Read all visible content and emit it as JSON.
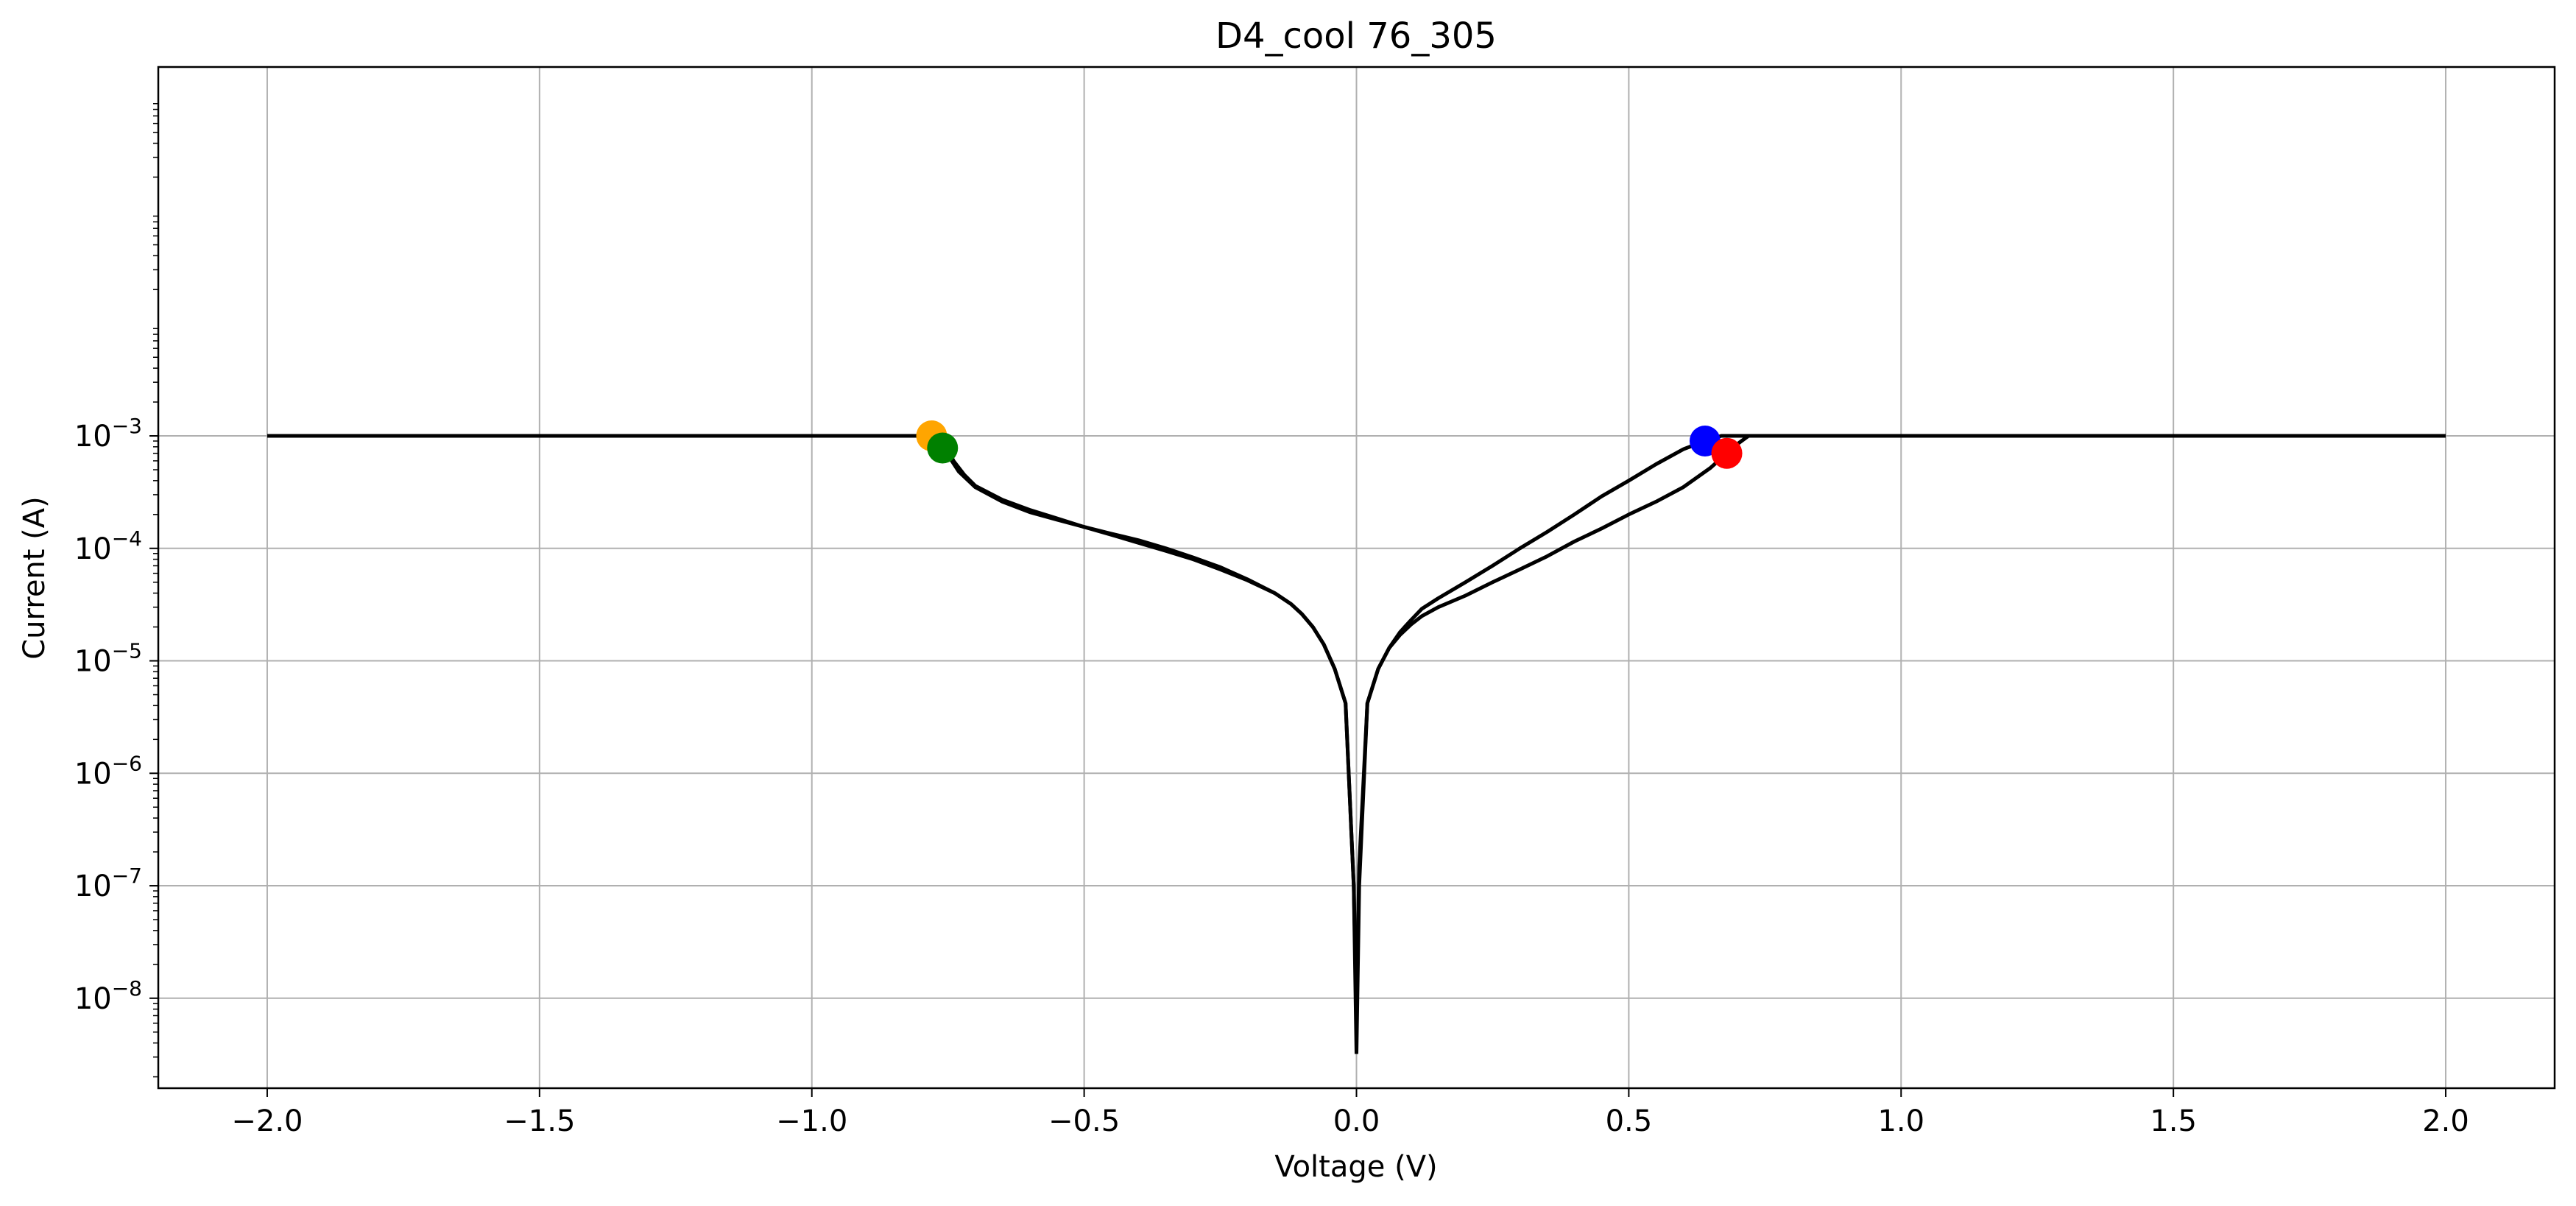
{
  "chart_data": {
    "type": "line",
    "title": "D4_cool 76_305",
    "xlabel": "Voltage (V)",
    "ylabel": "Current (A)",
    "x_scale": "linear",
    "y_scale": "log",
    "xlim": [
      -2.2,
      2.2
    ],
    "ylim_exponent": [
      -8.8,
      0.28
    ],
    "xticks": [
      -2.0,
      -1.5,
      -1.0,
      -0.5,
      0.0,
      0.5,
      1.0,
      1.5,
      2.0
    ],
    "xtick_labels": [
      "−2.0",
      "−1.5",
      "−1.0",
      "−0.5",
      "0.0",
      "0.5",
      "1.0",
      "1.5",
      "2.0"
    ],
    "yticks": [
      1e-08,
      1e-07,
      1e-06,
      1e-05,
      0.0001,
      0.001
    ],
    "ytick_labels": [
      {
        "base": "10",
        "exp": "−8"
      },
      {
        "base": "10",
        "exp": "−7"
      },
      {
        "base": "10",
        "exp": "−6"
      },
      {
        "base": "10",
        "exp": "−5"
      },
      {
        "base": "10",
        "exp": "−4"
      },
      {
        "base": "10",
        "exp": "−3"
      }
    ],
    "grid": true,
    "line_color": "#000000",
    "series": [
      {
        "x": [
          0.0,
          0.005,
          0.02,
          0.04,
          0.06,
          0.08,
          0.1,
          0.12,
          0.15,
          0.2,
          0.25,
          0.3,
          0.35,
          0.4,
          0.45,
          0.5,
          0.55,
          0.6,
          0.64,
          0.67,
          0.7,
          0.72,
          0.75,
          1.0,
          1.5,
          2.0
        ],
        "y": [
          7.5e-09,
          1.5e-07,
          4.2e-06,
          8.5e-06,
          1.3e-05,
          1.8e-05,
          2.3e-05,
          2.9e-05,
          3.6e-05,
          5e-05,
          7e-05,
          0.0001,
          0.00014,
          0.0002,
          0.00029,
          0.0004,
          0.00056,
          0.00076,
          0.0009,
          0.001,
          0.001,
          0.001,
          0.001,
          0.001,
          0.001,
          0.001
        ]
      },
      {
        "x": [
          2.0,
          1.5,
          1.0,
          0.72,
          0.7,
          0.68,
          0.65,
          0.6,
          0.55,
          0.5,
          0.45,
          0.4,
          0.35,
          0.3,
          0.25,
          0.2,
          0.15,
          0.12,
          0.1,
          0.08,
          0.06,
          0.04,
          0.02,
          0.005,
          0.0
        ],
        "y": [
          0.001,
          0.001,
          0.001,
          0.001,
          0.00085,
          0.0007,
          0.00052,
          0.00035,
          0.00026,
          0.0002,
          0.00015,
          0.000115,
          8.5e-05,
          6.5e-05,
          5e-05,
          3.8e-05,
          3e-05,
          2.5e-05,
          2.1e-05,
          1.7e-05,
          1.3e-05,
          8.5e-06,
          4.2e-06,
          1e-07,
          3.2e-09
        ]
      },
      {
        "x": [
          0.0,
          -0.005,
          -0.02,
          -0.04,
          -0.06,
          -0.08,
          -0.1,
          -0.12,
          -0.15,
          -0.2,
          -0.25,
          -0.3,
          -0.35,
          -0.4,
          -0.45,
          -0.5,
          -0.55,
          -0.6,
          -0.65,
          -0.7,
          -0.73,
          -0.76,
          -0.78,
          -0.8,
          -1.0,
          -1.5,
          -2.0
        ],
        "y": [
          3.2e-09,
          1e-07,
          4.2e-06,
          8.5e-06,
          1.4e-05,
          2e-05,
          2.6e-05,
          3.2e-05,
          4e-05,
          5.3e-05,
          6.8e-05,
          8.3e-05,
          0.0001,
          0.000118,
          0.000135,
          0.000155,
          0.00018,
          0.00021,
          0.00026,
          0.00035,
          0.00048,
          0.0008,
          0.001,
          0.001,
          0.001,
          0.001,
          0.001
        ]
      },
      {
        "x": [
          -2.0,
          -1.5,
          -1.0,
          -0.8,
          -0.76,
          -0.74,
          -0.72,
          -0.7,
          -0.65,
          -0.6,
          -0.55,
          -0.5,
          -0.45,
          -0.4,
          -0.35,
          -0.3,
          -0.25,
          -0.2,
          -0.15,
          -0.12,
          -0.1,
          -0.08,
          -0.06,
          -0.04,
          -0.02,
          -0.005,
          0.0
        ],
        "y": [
          0.001,
          0.001,
          0.001,
          0.001,
          0.00095,
          0.0006,
          0.00045,
          0.00036,
          0.00027,
          0.00022,
          0.000185,
          0.000155,
          0.000132,
          0.000112,
          9.5e-05,
          8e-05,
          6.5e-05,
          5.2e-05,
          4e-05,
          3.2e-05,
          2.6e-05,
          2e-05,
          1.4e-05,
          8.5e-06,
          4.2e-06,
          1e-07,
          7.5e-09
        ]
      }
    ],
    "markers": [
      {
        "x": 0.64,
        "y": 0.0009,
        "color": "#0000ff"
      },
      {
        "x": 0.68,
        "y": 0.0007,
        "color": "#ff0000"
      },
      {
        "x": -0.78,
        "y": 0.001,
        "color": "#ffa500"
      },
      {
        "x": -0.76,
        "y": 0.00078,
        "color": "#008000"
      }
    ]
  }
}
